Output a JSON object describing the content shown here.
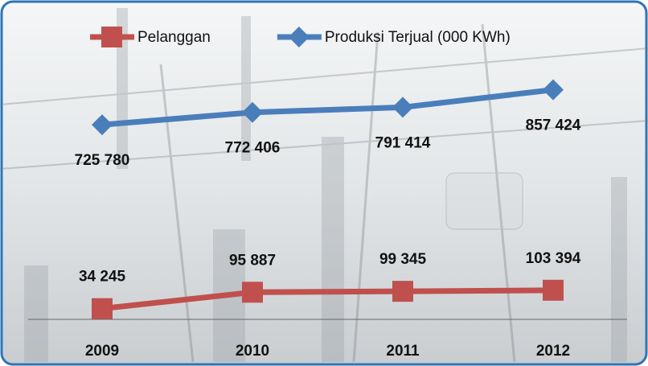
{
  "chart_data": {
    "type": "line",
    "categories": [
      "2009",
      "2010",
      "2011",
      "2012"
    ],
    "series": [
      {
        "name": "Pelanggan",
        "color": "#c0504d",
        "marker": "square",
        "values": [
          34245,
          95887,
          99345,
          103394
        ],
        "value_labels": [
          "34 245",
          "95 887",
          "99 345",
          "103 394"
        ]
      },
      {
        "name": "Produksi Terjual (000 KWh)",
        "color": "#4a7ebb",
        "marker": "diamond",
        "values": [
          725780,
          772406,
          791414,
          857424
        ],
        "value_labels": [
          "725 780",
          "772 406",
          "791 414",
          "857 424"
        ]
      }
    ],
    "ylim": [
      0,
      950000
    ],
    "legend": "top"
  }
}
